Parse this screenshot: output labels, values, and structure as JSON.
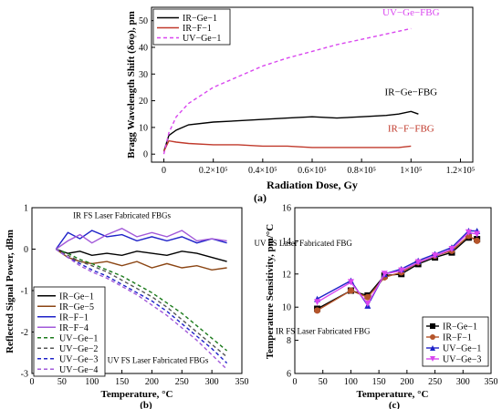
{
  "charts": [
    {
      "id": "a",
      "type": "line",
      "panel_label": "(a)",
      "xlabel": "Radiation Dose, Gy",
      "ylabel": "Bragg Wavelength Shift (δσφ), pm",
      "xlim": [
        -5000,
        125000
      ],
      "ylim": [
        -3,
        55
      ],
      "xticks": [
        0,
        20000,
        40000,
        60000,
        80000,
        100000,
        120000
      ],
      "xtick_labels": [
        "0",
        "0.2×10⁵",
        "0.4×10⁵",
        "0.6×10⁵",
        "0.8×10⁵",
        "1×10⁵",
        "1.2×10⁵"
      ],
      "yticks": [
        0,
        10,
        20,
        30,
        40,
        50
      ],
      "ytick_labels": [
        "0",
        "10",
        "20",
        "30",
        "40",
        "50"
      ],
      "legend_position": "top-left",
      "series": [
        {
          "name": "IR−Ge−1",
          "color": "#000000",
          "style": "solid",
          "x": [
            0,
            2000,
            5000,
            10000,
            20000,
            30000,
            40000,
            50000,
            60000,
            70000,
            80000,
            90000,
            95000,
            100000,
            103000
          ],
          "y": [
            1,
            7,
            9,
            11,
            12,
            12.5,
            13,
            13.5,
            14,
            13.5,
            14,
            14.5,
            15,
            16,
            15
          ]
        },
        {
          "name": "IR−F−1",
          "color": "#c0392b",
          "style": "solid",
          "x": [
            0,
            2000,
            5000,
            10000,
            20000,
            30000,
            40000,
            50000,
            60000,
            70000,
            80000,
            90000,
            95000,
            100000
          ],
          "y": [
            1,
            5,
            4.5,
            4,
            3.5,
            3.5,
            3,
            3,
            2.5,
            2.5,
            2.5,
            2.5,
            2.5,
            3
          ]
        },
        {
          "name": "UV−Ge−1",
          "color": "#d946ef",
          "style": "dashed",
          "x": [
            0,
            2000,
            5000,
            10000,
            15000,
            20000,
            30000,
            40000,
            50000,
            60000,
            70000,
            80000,
            90000,
            100000
          ],
          "y": [
            0,
            8,
            14,
            19,
            22,
            25,
            29,
            33,
            36,
            38.5,
            41,
            43,
            45,
            47
          ]
        }
      ],
      "annotations": [
        {
          "text": "UV−Ge−FBG",
          "color": "#d946ef",
          "x": 100000,
          "y": 52
        },
        {
          "text": "IR−Ge−FBG",
          "color": "#000000",
          "x": 100000,
          "y": 22
        },
        {
          "text": "IR−F−FBG",
          "color": "#c0392b",
          "x": 100000,
          "y": 8.5
        }
      ]
    },
    {
      "id": "b",
      "type": "line",
      "panel_label": "(b)",
      "xlabel": "Temperature, °C",
      "ylabel": "Reflected Signal Power, dBm",
      "xlim": [
        0,
        350
      ],
      "ylim": [
        -3,
        1
      ],
      "xticks": [
        0,
        50,
        100,
        150,
        200,
        250,
        300,
        350
      ],
      "xtick_labels": [
        "0",
        "50",
        "100",
        "150",
        "200",
        "250",
        "300",
        "350"
      ],
      "yticks": [
        -3,
        -2,
        -1,
        0,
        1
      ],
      "ytick_labels": [
        "-3",
        "-2",
        "-1",
        "0",
        "1"
      ],
      "legend_position": "bottom-left",
      "series": [
        {
          "name": "IR−Ge−1",
          "color": "#000000",
          "style": "solid",
          "x": [
            40,
            60,
            80,
            100,
            125,
            150,
            175,
            200,
            225,
            250,
            275,
            300,
            325
          ],
          "y": [
            0,
            -0.1,
            -0.05,
            -0.15,
            -0.1,
            -0.15,
            -0.05,
            -0.1,
            -0.15,
            -0.05,
            -0.1,
            -0.2,
            -0.3
          ]
        },
        {
          "name": "IR−Ge−5",
          "color": "#8b4513",
          "style": "solid",
          "x": [
            40,
            60,
            80,
            100,
            125,
            150,
            175,
            200,
            225,
            250,
            275,
            300,
            325
          ],
          "y": [
            0,
            -0.2,
            -0.3,
            -0.35,
            -0.3,
            -0.4,
            -0.3,
            -0.45,
            -0.35,
            -0.45,
            -0.4,
            -0.5,
            -0.45
          ]
        },
        {
          "name": "IR−F−1",
          "color": "#1e22c8",
          "style": "solid",
          "x": [
            40,
            60,
            80,
            100,
            125,
            150,
            175,
            200,
            225,
            250,
            275,
            300,
            325
          ],
          "y": [
            0,
            0.4,
            0.25,
            0.45,
            0.3,
            0.35,
            0.2,
            0.3,
            0.2,
            0.3,
            0.15,
            0.25,
            0.15
          ]
        },
        {
          "name": "IR−F−4",
          "color": "#a259d9",
          "style": "solid",
          "x": [
            40,
            60,
            80,
            100,
            125,
            150,
            175,
            200,
            225,
            250,
            275,
            300,
            325
          ],
          "y": [
            0,
            0.2,
            0.35,
            0.15,
            0.35,
            0.5,
            0.3,
            0.4,
            0.3,
            0.45,
            0.2,
            0.25,
            0.2
          ]
        },
        {
          "name": "UV−Ge−1",
          "color": "#1a7a1a",
          "style": "dashed",
          "x": [
            40,
            60,
            80,
            100,
            125,
            150,
            175,
            200,
            225,
            250,
            275,
            300,
            325
          ],
          "y": [
            0,
            -0.1,
            -0.25,
            -0.35,
            -0.5,
            -0.65,
            -0.85,
            -1.05,
            -1.3,
            -1.55,
            -1.85,
            -2.15,
            -2.45
          ]
        },
        {
          "name": "UV−Ge−2",
          "color": "#555555",
          "style": "dashed",
          "x": [
            40,
            60,
            80,
            100,
            125,
            150,
            175,
            200,
            225,
            250,
            275,
            300,
            325
          ],
          "y": [
            0,
            -0.15,
            -0.3,
            -0.4,
            -0.55,
            -0.75,
            -0.95,
            -1.15,
            -1.4,
            -1.7,
            -2.0,
            -2.3,
            -2.6
          ]
        },
        {
          "name": "UV−Ge−3",
          "color": "#1e22c8",
          "style": "dashed",
          "x": [
            40,
            60,
            80,
            100,
            125,
            150,
            175,
            200,
            225,
            250,
            275,
            300,
            325
          ],
          "y": [
            0,
            -0.2,
            -0.35,
            -0.5,
            -0.65,
            -0.85,
            -1.05,
            -1.25,
            -1.5,
            -1.8,
            -2.1,
            -2.4,
            -2.75
          ]
        },
        {
          "name": "UV−Ge−4",
          "color": "#a259d9",
          "style": "dashed",
          "x": [
            40,
            60,
            80,
            100,
            125,
            150,
            175,
            200,
            225,
            250,
            275,
            300,
            325
          ],
          "y": [
            0,
            -0.2,
            -0.4,
            -0.55,
            -0.7,
            -0.9,
            -1.1,
            -1.35,
            -1.6,
            -1.9,
            -2.2,
            -2.55,
            -2.9
          ]
        }
      ],
      "annotations": [
        {
          "text": "IR FS Laser Fabricated FBGs",
          "color": "#000000",
          "x": 150,
          "y": 0.75
        },
        {
          "text": "UV FS Laser Fabricated FBGs",
          "color": "#000000",
          "x": 210,
          "y": -2.75
        }
      ]
    },
    {
      "id": "c",
      "type": "line",
      "panel_label": "(c)",
      "xlabel": "Temperature, °C",
      "ylabel": "Temperature Sensitivity, pm/°C",
      "xlim": [
        0,
        350
      ],
      "ylim": [
        6,
        16
      ],
      "xticks": [
        0,
        50,
        100,
        150,
        200,
        250,
        300,
        350
      ],
      "xtick_labels": [
        "0",
        "50",
        "100",
        "150",
        "200",
        "250",
        "300",
        "350"
      ],
      "yticks": [
        6,
        8,
        10,
        12,
        14,
        16
      ],
      "ytick_labels": [
        "6",
        "8",
        "10",
        "12",
        "14",
        "16"
      ],
      "legend_position": "bottom-right",
      "series": [
        {
          "name": "IR−Ge−1",
          "color": "#000000",
          "marker": "square",
          "x": [
            40,
            100,
            130,
            160,
            190,
            220,
            250,
            280,
            310,
            325
          ],
          "y": [
            9.9,
            11.0,
            10.7,
            11.9,
            12.0,
            12.6,
            13.0,
            13.3,
            14.2,
            14.1
          ]
        },
        {
          "name": "IR−F−1",
          "color": "#b5552b",
          "marker": "circle",
          "x": [
            40,
            100,
            130,
            160,
            190,
            220,
            250,
            280,
            310,
            325
          ],
          "y": [
            9.8,
            11.0,
            10.6,
            11.8,
            12.1,
            12.7,
            13.1,
            13.4,
            14.3,
            14.0
          ]
        },
        {
          "name": "UV−Ge−1",
          "color": "#1e22c8",
          "marker": "triangle-up",
          "x": [
            40,
            100,
            130,
            160,
            190,
            220,
            250,
            280,
            310,
            325
          ],
          "y": [
            10.5,
            11.6,
            10.1,
            12.0,
            12.3,
            12.8,
            13.2,
            13.6,
            14.6,
            14.6
          ]
        },
        {
          "name": "UV−Ge−3",
          "color": "#d946ef",
          "marker": "triangle-down",
          "x": [
            40,
            100,
            130,
            160,
            190,
            220,
            250,
            280,
            310,
            325
          ],
          "y": [
            10.3,
            11.5,
            10.2,
            12.0,
            12.2,
            12.7,
            13.1,
            13.5,
            14.5,
            14.4
          ]
        }
      ],
      "annotations": [
        {
          "text": "UV FS Laser Fabricated FBG",
          "color": "#000000",
          "x": 15,
          "y": 13.7
        },
        {
          "text": "IR FS Laser Fabricated FBG",
          "color": "#000000",
          "x": 50,
          "y": 8.4
        }
      ]
    }
  ]
}
